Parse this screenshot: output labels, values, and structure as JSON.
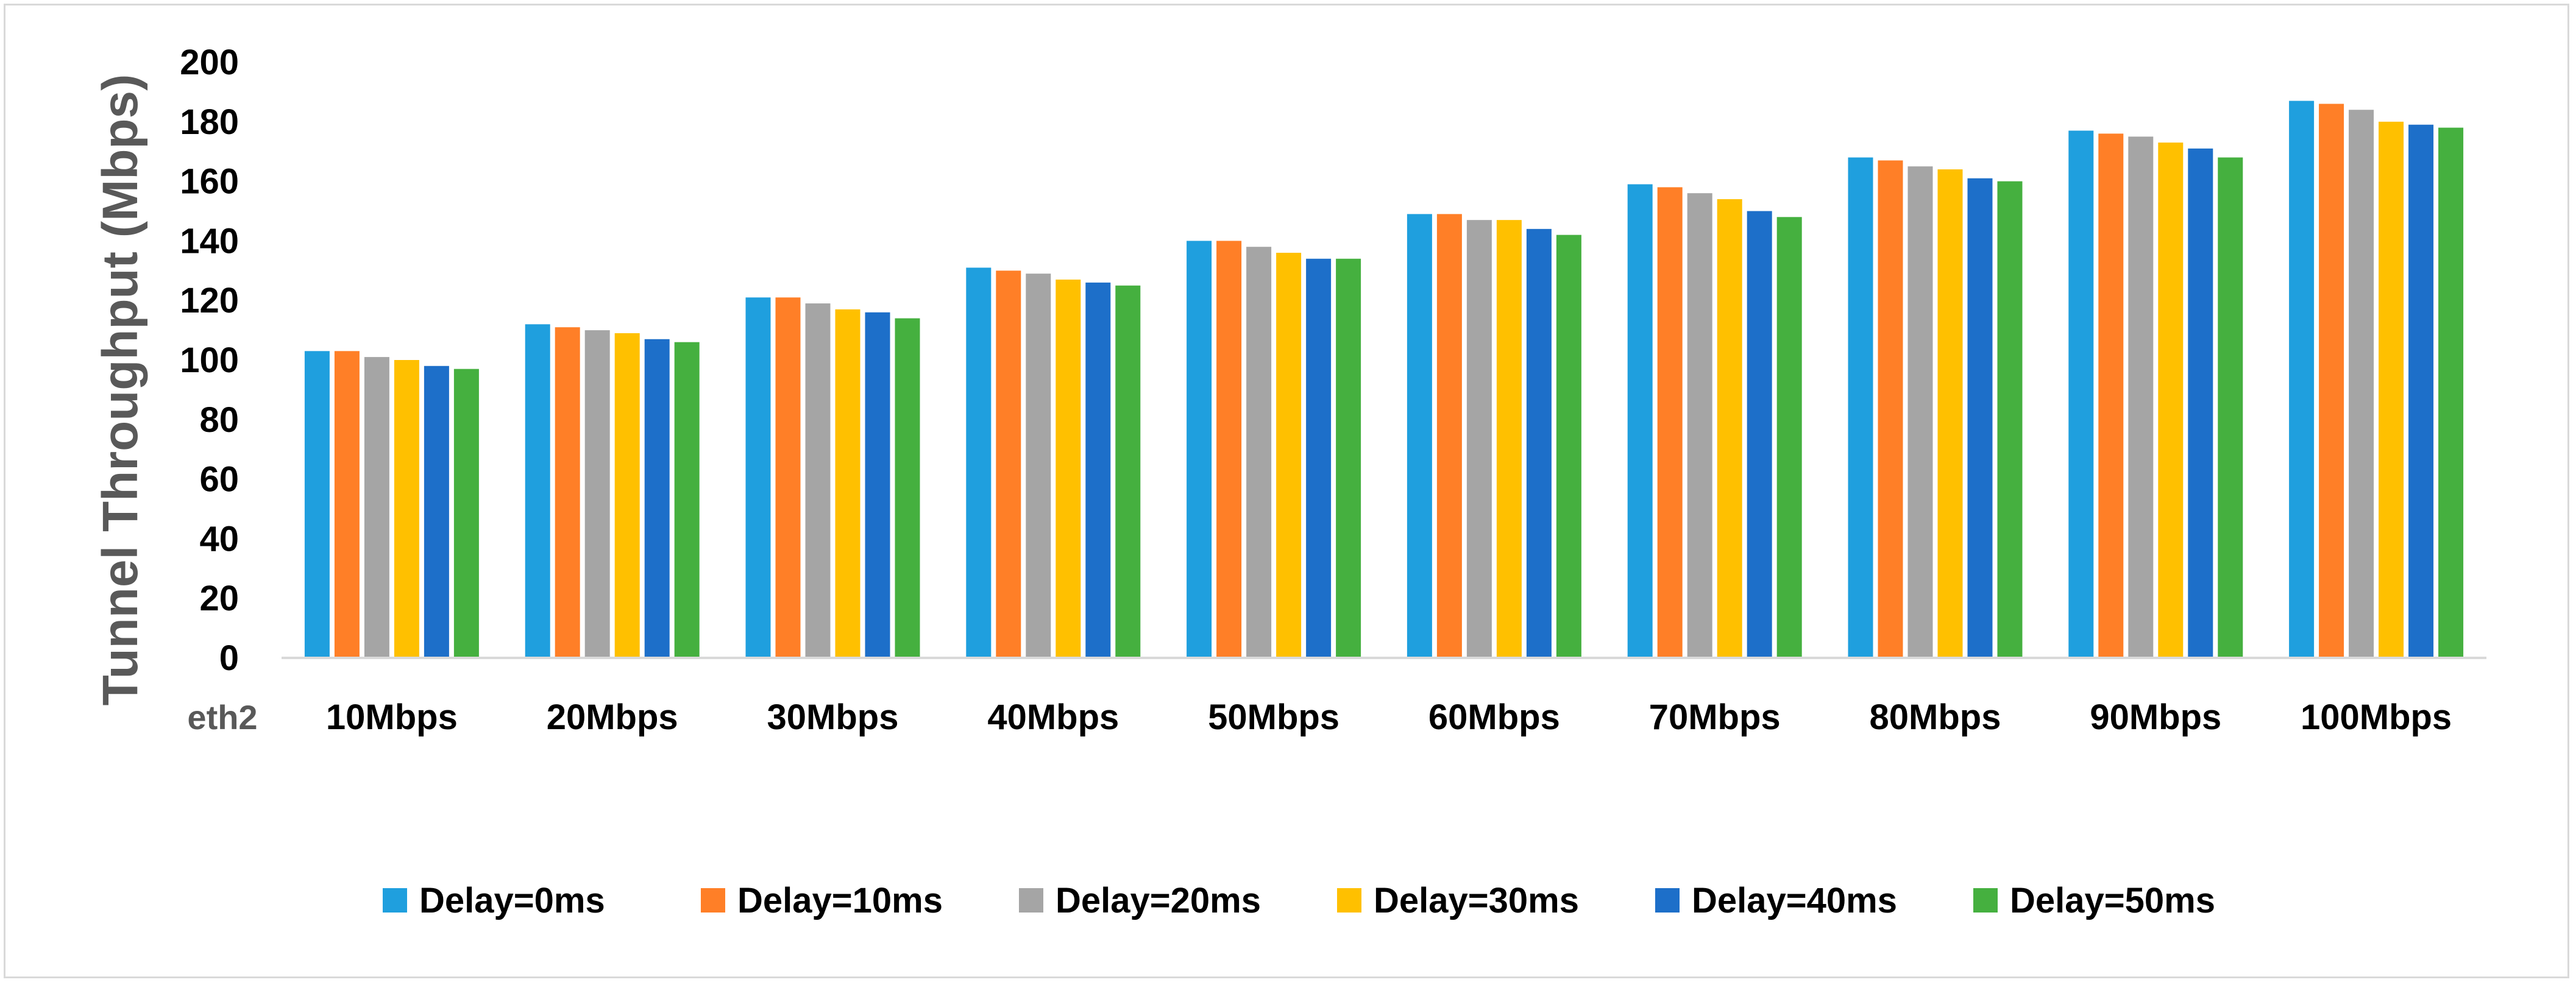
{
  "chart_data": {
    "type": "bar",
    "ylabel": "Tunnel Throughput (Mbps)",
    "xprefix": "eth2",
    "categories": [
      "10Mbps",
      "20Mbps",
      "30Mbps",
      "40Mbps",
      "50Mbps",
      "60Mbps",
      "70Mbps",
      "80Mbps",
      "90Mbps",
      "100Mbps"
    ],
    "ylim": [
      0,
      200
    ],
    "yticks": [
      0,
      20,
      40,
      60,
      80,
      100,
      120,
      140,
      160,
      180,
      200
    ],
    "grid": false,
    "legend_position": "bottom",
    "series": [
      {
        "name": "Delay=0ms",
        "color": "#1f9fde",
        "values": [
          103,
          112,
          121,
          131,
          140,
          149,
          159,
          168,
          177,
          187
        ]
      },
      {
        "name": "Delay=10ms",
        "color": "#ff7f27",
        "values": [
          103,
          111,
          121,
          130,
          140,
          149,
          158,
          167,
          176,
          186
        ]
      },
      {
        "name": "Delay=20ms",
        "color": "#a5a5a5",
        "values": [
          101,
          110,
          119,
          129,
          138,
          147,
          156,
          165,
          175,
          184
        ]
      },
      {
        "name": "Delay=30ms",
        "color": "#ffc000",
        "values": [
          100,
          109,
          117,
          127,
          136,
          147,
          154,
          164,
          173,
          180
        ]
      },
      {
        "name": "Delay=40ms",
        "color": "#1d6fc9",
        "values": [
          98,
          107,
          116,
          126,
          134,
          144,
          150,
          161,
          171,
          179
        ]
      },
      {
        "name": "Delay=50ms",
        "color": "#45b03f",
        "values": [
          97,
          106,
          114,
          125,
          134,
          142,
          148,
          160,
          168,
          178
        ]
      }
    ]
  }
}
